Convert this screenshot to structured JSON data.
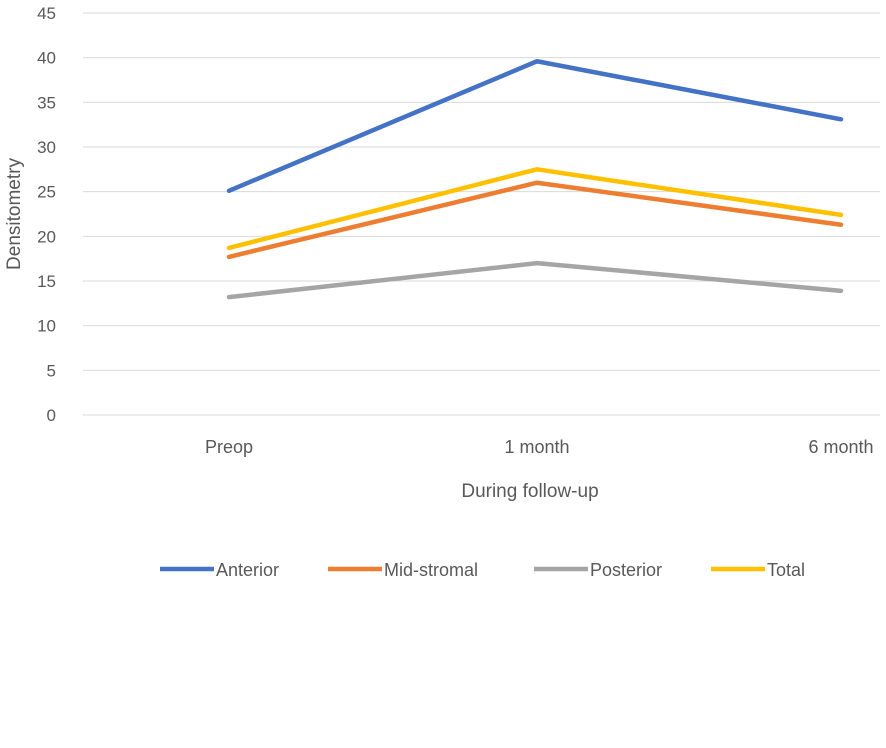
{
  "chart_data": {
    "type": "line",
    "title": "",
    "xlabel": "During follow-up",
    "ylabel": "Densitometry",
    "categories": [
      "Preop",
      "1 month",
      "6 month"
    ],
    "ylim": [
      0,
      45
    ],
    "yticks": [
      0,
      5,
      10,
      15,
      20,
      25,
      30,
      35,
      40,
      45
    ],
    "grid": true,
    "legend": "bottom",
    "series": [
      {
        "name": "Anterior",
        "color": "#4472C4",
        "values": [
          25.1,
          39.6,
          33.1
        ]
      },
      {
        "name": "Mid-stromal",
        "color": "#ED7D31",
        "values": [
          17.7,
          26.0,
          21.3
        ]
      },
      {
        "name": "Posterior",
        "color": "#A5A5A5",
        "values": [
          13.2,
          17.0,
          13.9
        ]
      },
      {
        "name": "Total",
        "color": "#FFC000",
        "values": [
          18.7,
          27.5,
          22.4
        ]
      }
    ]
  }
}
